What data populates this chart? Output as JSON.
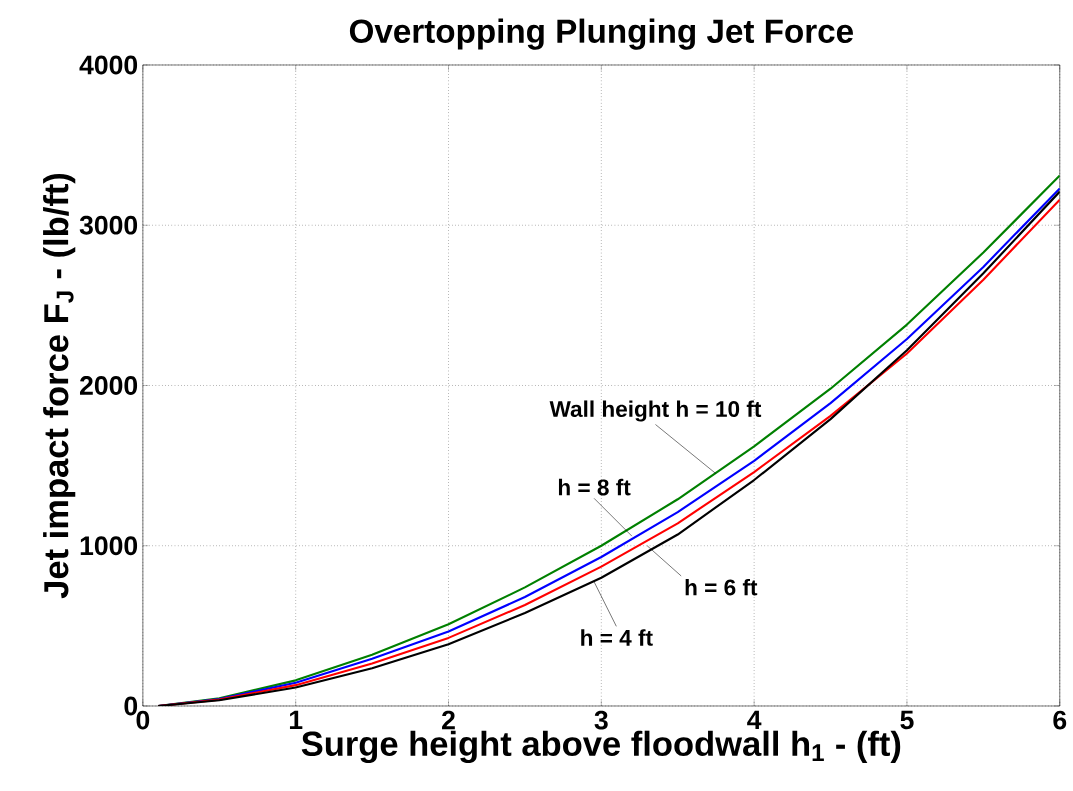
{
  "chart_data": {
    "type": "line",
    "title": "Overtopping Plunging Jet Force",
    "xlabel": "Surge height above floodwall  h$_{1}$ - (ft)",
    "ylabel": "Jet impact force   F$_{J}$ - (lb/ft)",
    "x": [
      0.1,
      0.5,
      1,
      1.5,
      2,
      2.5,
      3,
      3.5,
      4,
      4.5,
      5,
      5.5,
      6
    ],
    "series": [
      {
        "color": "#008000",
        "values": [
          0,
          48,
          160,
          320,
          510,
          740,
          1000,
          1290,
          1620,
          1980,
          2380,
          2830,
          3310
        ]
      },
      {
        "color": "#0000ff",
        "values": [
          0,
          44,
          145,
          295,
          465,
          680,
          930,
          1210,
          1530,
          1890,
          2290,
          2740,
          3230
        ]
      },
      {
        "color": "#ff0000",
        "values": [
          0,
          40,
          130,
          265,
          425,
          630,
          870,
          1140,
          1460,
          1810,
          2200,
          2660,
          3160
        ]
      },
      {
        "color": "#000000",
        "values": [
          0,
          36,
          115,
          235,
          385,
          580,
          800,
          1070,
          1410,
          1790,
          2220,
          2700,
          3210
        ]
      }
    ],
    "xlim": [
      0,
      6
    ],
    "ylim": [
      0,
      4000
    ],
    "xticks": [
      0,
      1,
      2,
      3,
      4,
      5,
      6
    ],
    "yticks": [
      0,
      1000,
      2000,
      3000,
      4000
    ],
    "grid": true,
    "marker": "none",
    "line_style": "solid",
    "annotations": [
      {
        "text": "Wall height  h = 10 ft",
        "x": 3.75,
        "y": 1450
      },
      {
        "text": "h = 8 ft",
        "x": 3.2,
        "y": 1060
      },
      {
        "text": "h = 6 ft",
        "x": 3.3,
        "y": 1000
      },
      {
        "text": "h = 4 ft",
        "x": 2.95,
        "y": 780
      }
    ]
  }
}
